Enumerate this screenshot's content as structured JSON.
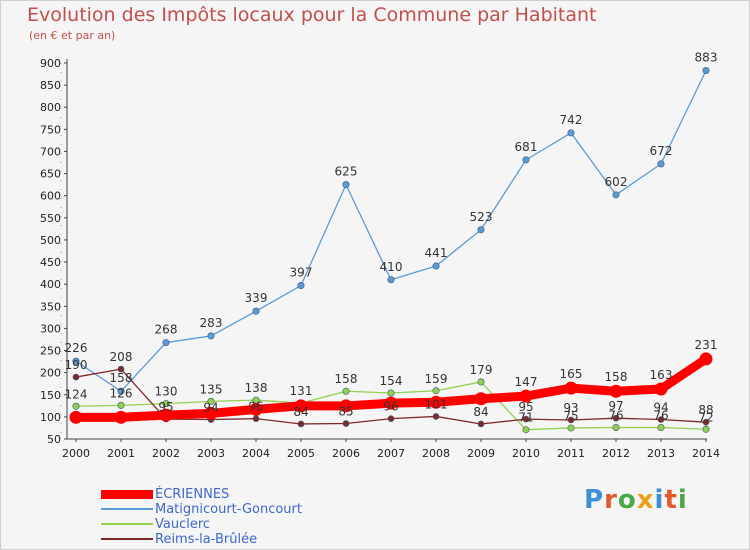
{
  "title": "Evolution des Impôts locaux pour la Commune par Habitant",
  "subtitle": "(en € et par an)",
  "brand": {
    "text": "Proxiti",
    "letter_colors": [
      "#3a8fd6",
      "#e05a2a",
      "#4aa84a",
      "#e9a21a",
      "#3a8fd6",
      "#e05a2a",
      "#4aa84a"
    ]
  },
  "chart_data": {
    "type": "line",
    "x": [
      2000,
      2001,
      2002,
      2003,
      2004,
      2005,
      2006,
      2007,
      2008,
      2009,
      2010,
      2011,
      2012,
      2013,
      2014
    ],
    "ylim": [
      50,
      900
    ],
    "yticks": [
      50,
      100,
      150,
      200,
      250,
      300,
      350,
      400,
      450,
      500,
      550,
      600,
      650,
      700,
      750,
      800,
      850,
      900
    ],
    "grid": false,
    "legend_position": "bottom-left",
    "series": [
      {
        "name": "ÉCRIENNES",
        "color": "#ff0000",
        "values": [
          99,
          99,
          104,
          108,
          117,
          125,
          125,
          131,
          133,
          141,
          147,
          165,
          158,
          163,
          231
        ]
      },
      {
        "name": "Matignicourt-Goncourt",
        "color": "#5b9bd5",
        "values": [
          226,
          158,
          268,
          283,
          339,
          397,
          625,
          410,
          441,
          523,
          681,
          742,
          602,
          672,
          883
        ]
      },
      {
        "name": "Vauclerc",
        "color": "#92d050",
        "values": [
          124,
          126,
          130,
          135,
          138,
          131,
          158,
          154,
          159,
          179,
          71,
          75,
          76,
          76,
          72
        ]
      },
      {
        "name": "Reims-la-Brûlée",
        "color": "#7f2a2a",
        "values": [
          190,
          208,
          95,
          94,
          96,
          84,
          85,
          96,
          101,
          84,
          95,
          93,
          97,
          94,
          88
        ]
      }
    ],
    "data_labels": {
      "ÉCRIENNES": [
        "",
        "",
        "",
        "",
        "",
        "",
        "",
        "",
        "",
        "",
        "147",
        "165",
        "158",
        "163",
        "231"
      ],
      "Matignicourt-Goncourt": [
        "226",
        "158",
        "268",
        "283",
        "339",
        "397",
        "625",
        "410",
        "441",
        "523",
        "681",
        "742",
        "602",
        "672",
        "883"
      ],
      "Vauclerc": [
        "124",
        "126",
        "130",
        "135",
        "138",
        "131",
        "158",
        "154",
        "159",
        "179",
        "71",
        "75",
        "76",
        "76",
        "72"
      ],
      "Reims-la-Brûlée": [
        "190",
        "208",
        "95",
        "94",
        "96",
        "84",
        "85",
        "96",
        "101",
        "84",
        "95",
        "93",
        "97",
        "94",
        "88"
      ]
    }
  }
}
